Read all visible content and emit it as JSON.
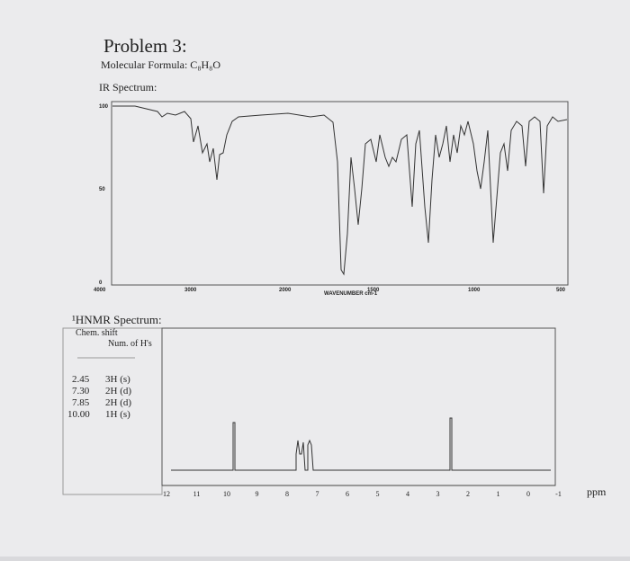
{
  "problem": {
    "title": "Problem 3:",
    "formula": "Molecular Formula: C₈H₈O"
  },
  "ir": {
    "title": "IR Spectrum:",
    "yticks": [
      100,
      50,
      0
    ],
    "xticks": [
      4000,
      3000,
      2000,
      1500,
      1000,
      500
    ],
    "xlabel": "WAVENUMBER cm-1"
  },
  "nmr": {
    "title": "¹HNMR Spectrum:",
    "table": {
      "header": [
        "Chem. shift",
        "Num. of H's"
      ],
      "rows": [
        [
          "2.45",
          "3H (s)"
        ],
        [
          "7.30",
          "2H (d)"
        ],
        [
          "7.85",
          "2H (d)"
        ],
        [
          "10.00",
          "1H (s)"
        ]
      ]
    },
    "xticks": [
      12,
      11,
      10,
      9,
      8,
      7,
      6,
      5,
      4,
      3,
      2,
      1,
      0,
      -1
    ],
    "xlabel": "ppm"
  }
}
